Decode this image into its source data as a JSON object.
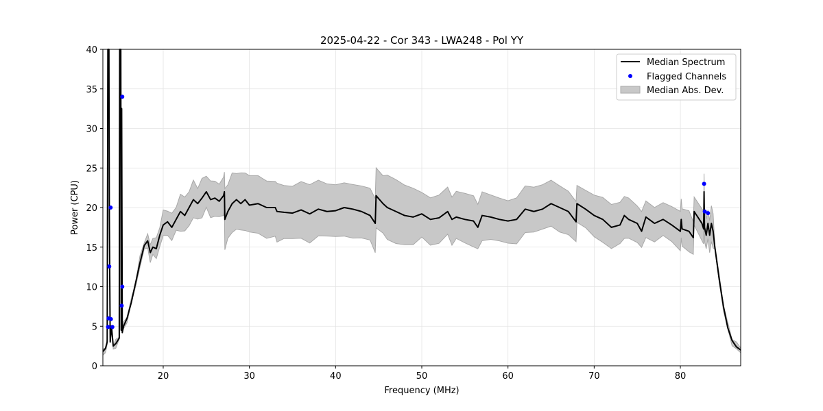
{
  "chart_data": {
    "type": "line",
    "title": "2025-04-22 - Cor 343 - LWA248 - Pol YY",
    "xlabel": "Frequency (MHz)",
    "ylabel": "Power (CPU)",
    "xlim": [
      13,
      87
    ],
    "ylim": [
      0,
      40
    ],
    "xticks": [
      20,
      30,
      40,
      50,
      60,
      70,
      80
    ],
    "yticks": [
      0,
      5,
      10,
      15,
      20,
      25,
      30,
      35,
      40
    ],
    "grid": true,
    "legend_position": "top-right",
    "legend": [
      "Median Spectrum",
      "Flagged Channels",
      "Median Abs. Dev."
    ],
    "colors": {
      "median": "#000000",
      "flagged": "#0000ff",
      "mad": "#c8c8c8"
    },
    "median_spectrum": [
      [
        13.0,
        1.8
      ],
      [
        13.3,
        2.2
      ],
      [
        13.5,
        3
      ],
      [
        13.58,
        40
      ],
      [
        13.7,
        40
      ],
      [
        13.75,
        19
      ],
      [
        13.85,
        3
      ],
      [
        14.0,
        5
      ],
      [
        14.2,
        2.5
      ],
      [
        14.5,
        2.8
      ],
      [
        14.9,
        3.5
      ],
      [
        14.95,
        40
      ],
      [
        15.08,
        40
      ],
      [
        15.12,
        4.5
      ],
      [
        15.18,
        32.5
      ],
      [
        15.25,
        4.2
      ],
      [
        15.4,
        5
      ],
      [
        15.8,
        6
      ],
      [
        16.3,
        8
      ],
      [
        16.8,
        10.5
      ],
      [
        17.3,
        13
      ],
      [
        17.8,
        15.2
      ],
      [
        18.2,
        15.8
      ],
      [
        18.5,
        14.3
      ],
      [
        18.8,
        15
      ],
      [
        19.2,
        14.8
      ],
      [
        19.6,
        16.5
      ],
      [
        20,
        17.8
      ],
      [
        20.5,
        18.2
      ],
      [
        21,
        17.5
      ],
      [
        21.5,
        18.5
      ],
      [
        22,
        19.5
      ],
      [
        22.5,
        19
      ],
      [
        23,
        20
      ],
      [
        23.5,
        21
      ],
      [
        24,
        20.5
      ],
      [
        24.5,
        21.2
      ],
      [
        25,
        22
      ],
      [
        25.5,
        21
      ],
      [
        26,
        21.2
      ],
      [
        26.5,
        20.8
      ],
      [
        27,
        21.5
      ],
      [
        27.1,
        22
      ],
      [
        27.15,
        18.5
      ],
      [
        27.5,
        19.5
      ],
      [
        28,
        20.5
      ],
      [
        28.5,
        21
      ],
      [
        29,
        20.5
      ],
      [
        29.5,
        21
      ],
      [
        30,
        20.3
      ],
      [
        31,
        20.5
      ],
      [
        32,
        20
      ],
      [
        33,
        20
      ],
      [
        33.2,
        19.5
      ],
      [
        34,
        19.4
      ],
      [
        35,
        19.3
      ],
      [
        36,
        19.7
      ],
      [
        37,
        19.2
      ],
      [
        38,
        19.8
      ],
      [
        39,
        19.5
      ],
      [
        40,
        19.6
      ],
      [
        41,
        20
      ],
      [
        42,
        19.8
      ],
      [
        43,
        19.5
      ],
      [
        44,
        19
      ],
      [
        44.6,
        18
      ],
      [
        44.7,
        21.5
      ],
      [
        45.5,
        20.5
      ],
      [
        46,
        20
      ],
      [
        47,
        19.5
      ],
      [
        48,
        19
      ],
      [
        49,
        18.8
      ],
      [
        50,
        19.2
      ],
      [
        51,
        18.5
      ],
      [
        52,
        18.7
      ],
      [
        53,
        19.5
      ],
      [
        53.5,
        18.5
      ],
      [
        54,
        18.8
      ],
      [
        55,
        18.5
      ],
      [
        56,
        18.3
      ],
      [
        56.5,
        17.5
      ],
      [
        57,
        19
      ],
      [
        58,
        18.8
      ],
      [
        59,
        18.5
      ],
      [
        60,
        18.3
      ],
      [
        61,
        18.5
      ],
      [
        62,
        19.8
      ],
      [
        63,
        19.5
      ],
      [
        64,
        19.8
      ],
      [
        65,
        20.5
      ],
      [
        66,
        20
      ],
      [
        67,
        19.5
      ],
      [
        67.9,
        18.2
      ],
      [
        68,
        20.5
      ],
      [
        69,
        19.8
      ],
      [
        70,
        19
      ],
      [
        71,
        18.5
      ],
      [
        72,
        17.5
      ],
      [
        73,
        17.8
      ],
      [
        73.5,
        19
      ],
      [
        74,
        18.5
      ],
      [
        75,
        18
      ],
      [
        75.5,
        17
      ],
      [
        76,
        18.8
      ],
      [
        77,
        18
      ],
      [
        78,
        18.5
      ],
      [
        79,
        17.8
      ],
      [
        80,
        17
      ],
      [
        80.1,
        18.5
      ],
      [
        80.2,
        17.3
      ],
      [
        81,
        17
      ],
      [
        81.5,
        16.2
      ],
      [
        81.6,
        19.5
      ],
      [
        82.5,
        18
      ],
      [
        82.7,
        17.3
      ],
      [
        82.75,
        22
      ],
      [
        82.8,
        17.5
      ],
      [
        83,
        16.5
      ],
      [
        83.2,
        18
      ],
      [
        83.4,
        16.5
      ],
      [
        83.6,
        18
      ],
      [
        83.8,
        17
      ],
      [
        84,
        15
      ],
      [
        84.5,
        11
      ],
      [
        85,
        7.5
      ],
      [
        85.5,
        4.8
      ],
      [
        86,
        3.2
      ],
      [
        86.5,
        2.4
      ],
      [
        87,
        2.0
      ]
    ],
    "mad_steps": [
      [
        13,
        0.3
      ],
      [
        17,
        0.6
      ],
      [
        18.5,
        1.2
      ],
      [
        20,
        1.6
      ],
      [
        22,
        2.2
      ],
      [
        27.15,
        3.6
      ],
      [
        35,
        3.4
      ],
      [
        44.7,
        3.8
      ],
      [
        50,
        3.0
      ],
      [
        60,
        2.8
      ],
      [
        68,
        2.6
      ],
      [
        75,
        2.3
      ],
      [
        81.6,
        2.0
      ],
      [
        84,
        0.4
      ]
    ],
    "flagged_channels": [
      [
        13.6,
        4.9
      ],
      [
        13.66,
        6.0
      ],
      [
        13.74,
        12.55
      ],
      [
        13.9,
        20.0
      ],
      [
        13.93,
        5.9
      ],
      [
        14.1,
        4.9
      ],
      [
        15.18,
        7.6
      ],
      [
        15.25,
        10.0
      ],
      [
        15.25,
        34.0
      ],
      [
        82.75,
        23.0
      ],
      [
        82.83,
        19.5
      ],
      [
        83.2,
        19.3
      ]
    ]
  }
}
